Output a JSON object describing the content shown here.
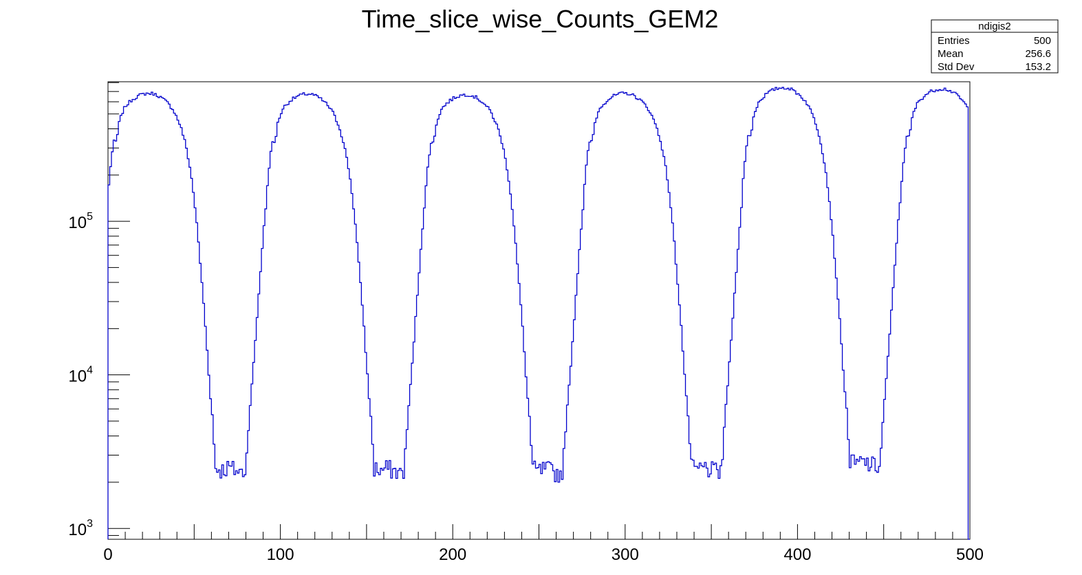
{
  "chart_data": {
    "type": "histogram",
    "title": "Time_slice_wise_Counts_GEM2",
    "xlabel": "",
    "ylabel": "",
    "xlim": [
      0,
      500
    ],
    "ylim": [
      850,
      810000
    ],
    "yscale": "log",
    "line_color": "#0000cc",
    "x_ticks": [
      0,
      100,
      200,
      300,
      400,
      500
    ],
    "y_ticks": [
      {
        "value": 1000,
        "base": "10",
        "exp": "3"
      },
      {
        "value": 10000,
        "base": "10",
        "exp": "4"
      },
      {
        "value": 100000,
        "base": "10",
        "exp": "5"
      }
    ],
    "bin_width": 1,
    "period": 92,
    "series": [
      {
        "profile": [
          {
            "x": 0,
            "y": 140000
          },
          {
            "x": 1,
            "y": 210000
          },
          {
            "x": 2,
            "y": 250000
          },
          {
            "x": 3,
            "y": 320000
          },
          {
            "x": 4,
            "y": 340000
          },
          {
            "x": 5,
            "y": 320000
          },
          {
            "x": 6,
            "y": 420000
          },
          {
            "x": 8,
            "y": 500000
          },
          {
            "x": 10,
            "y": 560000
          },
          {
            "x": 14,
            "y": 620000
          },
          {
            "x": 18,
            "y": 660000
          },
          {
            "x": 22,
            "y": 680000
          },
          {
            "x": 26,
            "y": 680000
          },
          {
            "x": 30,
            "y": 650000
          },
          {
            "x": 34,
            "y": 600000
          },
          {
            "x": 38,
            "y": 530000
          },
          {
            "x": 42,
            "y": 420000
          },
          {
            "x": 45,
            "y": 320000
          },
          {
            "x": 48,
            "y": 210000
          },
          {
            "x": 50,
            "y": 140000
          },
          {
            "x": 52,
            "y": 85000
          },
          {
            "x": 54,
            "y": 46000
          },
          {
            "x": 56,
            "y": 25000
          },
          {
            "x": 58,
            "y": 12000
          },
          {
            "x": 60,
            "y": 6000
          },
          {
            "x": 61,
            "y": 5000
          },
          {
            "x": 62,
            "y": 2500
          },
          {
            "x": 66,
            "y": 2400
          },
          {
            "x": 70,
            "y": 2500
          },
          {
            "x": 74,
            "y": 2400
          },
          {
            "x": 78,
            "y": 2300
          },
          {
            "x": 80,
            "y": 2500
          },
          {
            "x": 81,
            "y": 3600
          },
          {
            "x": 82,
            "y": 5500
          },
          {
            "x": 84,
            "y": 10000
          },
          {
            "x": 86,
            "y": 20000
          },
          {
            "x": 88,
            "y": 40000
          },
          {
            "x": 90,
            "y": 80000
          },
          {
            "x": 92,
            "y": 140000
          }
        ],
        "amplitudes": [
          1.0,
          0.99,
          0.98,
          1.0,
          1.09,
          1.07
        ]
      }
    ]
  },
  "stats": {
    "name": "ndigis2",
    "rows": [
      {
        "label": "Entries",
        "value": "500"
      },
      {
        "label": "Mean",
        "value": "256.6"
      },
      {
        "label": "Std Dev",
        "value": "153.2"
      }
    ]
  }
}
